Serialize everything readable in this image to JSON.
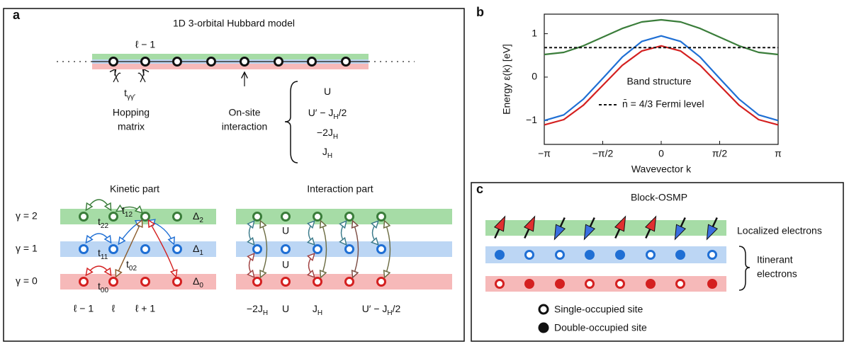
{
  "panel_a": {
    "letter": "a",
    "title": "1D 3-orbital Hubbard model",
    "chain_site_label": "ℓ − 1",
    "hopping_symbol": [
      {
        "text": "t"
      },
      {
        "sub": "γγ′"
      }
    ],
    "hopping_label": [
      "Hopping",
      "matrix"
    ],
    "onsite_label": [
      "On-site",
      "interaction"
    ],
    "interaction_terms": [
      [
        {
          "text": "U"
        }
      ],
      [
        {
          "text": "U′ − J"
        },
        {
          "sub": "H"
        },
        {
          "text": "/2"
        }
      ],
      [
        {
          "text": "−2J"
        },
        {
          "sub": "H"
        }
      ],
      [
        {
          "text": "J"
        },
        {
          "sub": "H"
        }
      ]
    ],
    "kinetic": {
      "title": "Kinetic part",
      "rows": [
        "γ = 2",
        "γ = 1",
        "γ = 0"
      ],
      "levels": [
        [
          {
            "text": "Δ"
          },
          {
            "sub": "2"
          }
        ],
        [
          {
            "text": "Δ"
          },
          {
            "sub": "1"
          }
        ],
        [
          {
            "text": "Δ"
          },
          {
            "sub": "0"
          }
        ]
      ],
      "hoppings": [
        [
          {
            "text": "t"
          },
          {
            "sub": "22"
          }
        ],
        [
          {
            "text": "t"
          },
          {
            "sub": "12"
          }
        ],
        [
          {
            "text": "t"
          },
          {
            "sub": "11"
          }
        ],
        [
          {
            "text": "t"
          },
          {
            "sub": "02"
          }
        ],
        [
          {
            "text": "t"
          },
          {
            "sub": "00"
          }
        ]
      ],
      "sites": [
        "ℓ − 1",
        "ℓ",
        "ℓ + 1"
      ]
    },
    "interaction": {
      "title": "Interaction part",
      "on_site": [
        "U",
        "U"
      ],
      "terms": [
        [
          {
            "text": "−2J"
          },
          {
            "sub": "H"
          }
        ],
        [
          {
            "text": "U"
          }
        ],
        [
          {
            "text": "J"
          },
          {
            "sub": "H"
          }
        ],
        [
          {
            "text": "U′ − J"
          },
          {
            "sub": "H"
          },
          {
            "text": "/2"
          }
        ]
      ]
    }
  },
  "chart_data": {
    "type": "line",
    "panel_letter": "b",
    "annotation": "Band structure",
    "x_label": "Wavevector k",
    "y_label": "Energy ε(k) [eV]",
    "x": [
      -3.1416,
      -2.618,
      -2.0944,
      -1.5708,
      -1.0472,
      -0.5236,
      0,
      0.5236,
      1.0472,
      1.5708,
      2.0944,
      2.618,
      3.1416
    ],
    "series": [
      {
        "color": "#3a7d3a",
        "values": [
          0.52,
          0.57,
          0.72,
          0.92,
          1.12,
          1.27,
          1.32,
          1.27,
          1.12,
          0.92,
          0.72,
          0.57,
          0.52
        ]
      },
      {
        "color": "#1f6fd4",
        "values": [
          -1.0,
          -0.87,
          -0.51,
          -0.03,
          0.46,
          0.82,
          0.95,
          0.82,
          0.46,
          -0.03,
          -0.51,
          -0.87,
          -1.0
        ]
      },
      {
        "color": "#d42020",
        "values": [
          -1.1,
          -0.98,
          -0.65,
          -0.19,
          0.27,
          0.6,
          0.72,
          0.6,
          0.27,
          -0.19,
          -0.65,
          -0.98,
          -1.1
        ]
      }
    ],
    "fermi_level": {
      "value": 0.68,
      "label": "n̄ = 4/3 Fermi level"
    },
    "xlim": [
      -3.1416,
      3.1416
    ],
    "ylim": [
      -1.55,
      1.45
    ],
    "xticks": [
      {
        "value": -3.1416,
        "label": "−π"
      },
      {
        "value": -1.5708,
        "label": "−π/2"
      },
      0,
      {
        "value": 1.5708,
        "label": "π/2"
      },
      {
        "value": 3.1416,
        "label": "π"
      }
    ],
    "yticks": [
      {
        "value": -1,
        "label": "−1"
      },
      0,
      1
    ],
    "grid": false
  },
  "panel_c": {
    "letter": "c",
    "title": "Block-OSMP",
    "localized": "Localized electrons",
    "itinerant": [
      "Itinerant",
      "electrons"
    ],
    "legend": [
      "Single-occupied site",
      "Double-occupied site"
    ]
  }
}
